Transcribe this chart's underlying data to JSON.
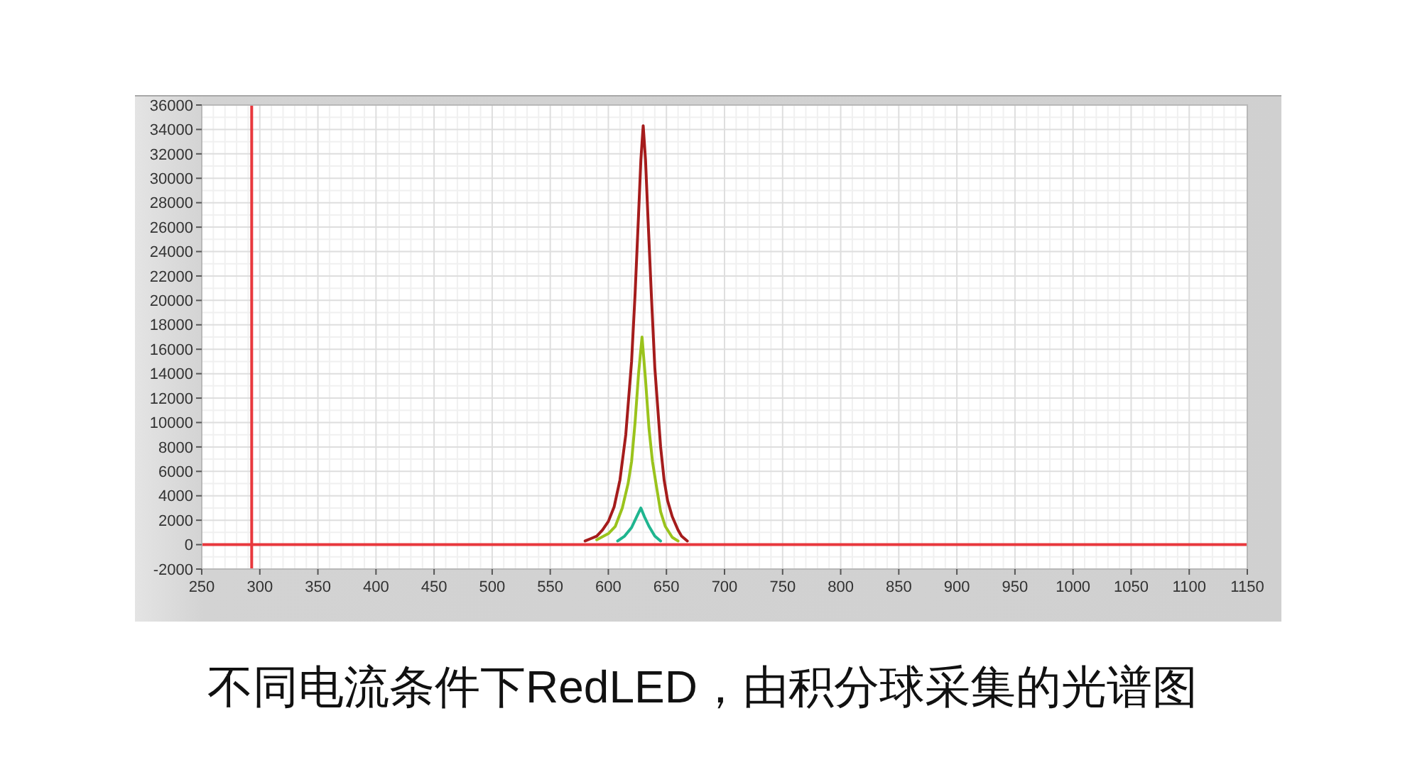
{
  "chart_data": {
    "type": "line",
    "annotations": [
      "不同电流条件下RedLED，由积分球采集的光谱图"
    ],
    "xlim": [
      250,
      1150
    ],
    "xticks": [
      250,
      300,
      350,
      400,
      450,
      500,
      550,
      600,
      650,
      700,
      750,
      800,
      850,
      900,
      950,
      1000,
      1050,
      1100,
      1150
    ],
    "ylim": [
      -2000,
      36000
    ],
    "yticks": [
      -2000,
      0,
      2000,
      4000,
      6000,
      8000,
      10000,
      12000,
      14000,
      16000,
      18000,
      20000,
      22000,
      24000,
      26000,
      28000,
      30000,
      32000,
      34000,
      36000
    ],
    "grid": true,
    "ref_lines": [
      {
        "axis": "x",
        "value": 293,
        "color": "#e8383d"
      },
      {
        "axis": "y",
        "value": 0,
        "color": "#e8383d"
      }
    ],
    "series": [
      {
        "color": "#1fb58f",
        "x": [
          608,
          614,
          620,
          624,
          628,
          631,
          635,
          640,
          645
        ],
        "values": [
          300,
          700,
          1400,
          2200,
          3000,
          2300,
          1500,
          700,
          300
        ]
      },
      {
        "color": "#9ac31c",
        "x": [
          590,
          600,
          606,
          612,
          617,
          620,
          623,
          626,
          629,
          632,
          635,
          638,
          641,
          645,
          649,
          655,
          660
        ],
        "values": [
          400,
          900,
          1500,
          3000,
          5000,
          6800,
          10000,
          14000,
          17000,
          13500,
          9500,
          6800,
          5000,
          2700,
          1500,
          600,
          300
        ]
      },
      {
        "color": "#a51c1c",
        "x": [
          580,
          585,
          590,
          595,
          600,
          605,
          610,
          615,
          620,
          623,
          626,
          628,
          630,
          632,
          634,
          637,
          640,
          645,
          648,
          651,
          655,
          660,
          663,
          668
        ],
        "values": [
          300,
          500,
          700,
          1200,
          1900,
          3100,
          5300,
          9000,
          15000,
          20500,
          27000,
          31500,
          34300,
          31500,
          27000,
          20500,
          14500,
          8000,
          5300,
          3600,
          2300,
          1200,
          700,
          300
        ]
      }
    ]
  }
}
